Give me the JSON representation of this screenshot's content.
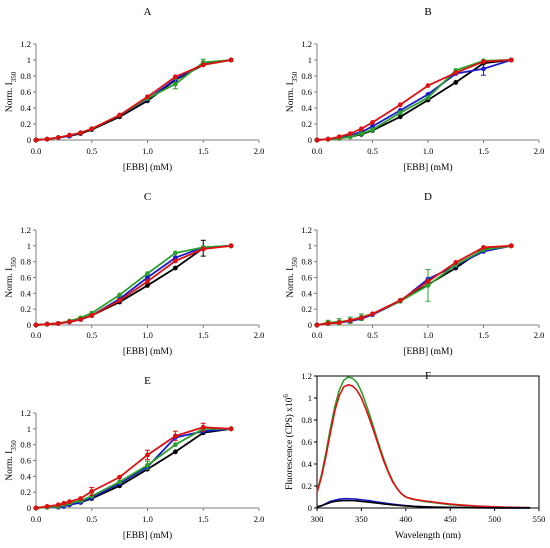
{
  "chart_data": [
    {
      "panel": "A",
      "type": "line",
      "title": "A",
      "ylabel": "Norm. I",
      "ylabel_sub": "350",
      "xlabel": "[EBB]  (mM)",
      "xlim": [
        0,
        2
      ],
      "ylim": [
        0,
        1.2
      ],
      "xticks": [
        "0.0",
        "0.5",
        "1.0",
        "1.5",
        "2.0"
      ],
      "yticks": [
        "0",
        "0.2",
        "0.4",
        "0.6",
        "0.8",
        "1",
        "1.2"
      ],
      "x": [
        0,
        0.1,
        0.2,
        0.3,
        0.4,
        0.5,
        0.75,
        1.0,
        1.25,
        1.5,
        1.75
      ],
      "series": [
        {
          "color": "#000000",
          "values": [
            0,
            0.01,
            0.03,
            0.05,
            0.08,
            0.13,
            0.29,
            0.49,
            0.75,
            0.94,
            1.0
          ]
        },
        {
          "color": "#1a1acc",
          "values": [
            0,
            0.01,
            0.03,
            0.05,
            0.09,
            0.14,
            0.31,
            0.51,
            0.76,
            0.95,
            1.0
          ]
        },
        {
          "color": "#2ca02c",
          "values": [
            0,
            0.01,
            0.03,
            0.06,
            0.09,
            0.14,
            0.31,
            0.52,
            0.7,
            0.97,
            1.0
          ],
          "errors": [
            0,
            0,
            0,
            0,
            0,
            0,
            0,
            0,
            0.06,
            0.04,
            0
          ]
        },
        {
          "color": "#dd1111",
          "values": [
            0,
            0.01,
            0.03,
            0.06,
            0.09,
            0.14,
            0.31,
            0.54,
            0.79,
            0.94,
            1.0
          ]
        }
      ]
    },
    {
      "panel": "B",
      "type": "line",
      "title": "B",
      "ylabel": "Norm. I",
      "ylabel_sub": "350",
      "xlabel": "[EBB]  (mM)",
      "xlim": [
        0,
        2
      ],
      "ylim": [
        0,
        1.2
      ],
      "xticks": [
        "0.0",
        "0.5",
        "1.0",
        "1.5",
        "2.0"
      ],
      "yticks": [
        "0",
        "0.2",
        "0.4",
        "0.6",
        "0.8",
        "1",
        "1.2"
      ],
      "x": [
        0,
        0.1,
        0.2,
        0.3,
        0.4,
        0.5,
        0.75,
        1.0,
        1.25,
        1.5,
        1.75
      ],
      "series": [
        {
          "color": "#000000",
          "values": [
            0,
            0.01,
            0.02,
            0.04,
            0.07,
            0.12,
            0.29,
            0.5,
            0.72,
            0.96,
            1.0
          ]
        },
        {
          "color": "#1a1acc",
          "values": [
            0,
            0.01,
            0.03,
            0.06,
            0.1,
            0.17,
            0.37,
            0.57,
            0.83,
            0.89,
            1.0
          ],
          "errors": [
            0,
            0,
            0,
            0,
            0,
            0,
            0,
            0,
            0,
            0.08,
            0
          ]
        },
        {
          "color": "#2ca02c",
          "values": [
            0,
            0.01,
            0.02,
            0.04,
            0.08,
            0.13,
            0.34,
            0.53,
            0.87,
            0.99,
            1.0
          ]
        },
        {
          "color": "#dd1111",
          "values": [
            0,
            0.01,
            0.04,
            0.08,
            0.14,
            0.22,
            0.44,
            0.68,
            0.84,
            0.98,
            1.0
          ]
        }
      ]
    },
    {
      "panel": "C",
      "type": "line",
      "title": "C",
      "ylabel": "Norm. I",
      "ylabel_sub": "350",
      "xlabel": "[EBB]  (mM)",
      "xlim": [
        0,
        2
      ],
      "ylim": [
        0,
        1.2
      ],
      "xticks": [
        "0.0",
        "0.5",
        "1.0",
        "1.5",
        "2.0"
      ],
      "yticks": [
        "0",
        "0.2",
        "0.4",
        "0.6",
        "0.8",
        "1",
        "1.2"
      ],
      "x": [
        0,
        0.1,
        0.2,
        0.3,
        0.4,
        0.5,
        0.75,
        1.0,
        1.25,
        1.5,
        1.75
      ],
      "series": [
        {
          "color": "#000000",
          "values": [
            0,
            0.01,
            0.02,
            0.04,
            0.07,
            0.12,
            0.29,
            0.5,
            0.72,
            0.97,
            1.0
          ],
          "errors": [
            0,
            0,
            0,
            0,
            0,
            0,
            0,
            0,
            0,
            0.1,
            0
          ]
        },
        {
          "color": "#1a1acc",
          "values": [
            0,
            0.01,
            0.02,
            0.04,
            0.07,
            0.12,
            0.33,
            0.6,
            0.85,
            0.98,
            1.0
          ]
        },
        {
          "color": "#2ca02c",
          "values": [
            0,
            0.01,
            0.02,
            0.05,
            0.09,
            0.15,
            0.38,
            0.65,
            0.91,
            0.98,
            1.0
          ]
        },
        {
          "color": "#dd1111",
          "values": [
            0,
            0.01,
            0.02,
            0.04,
            0.07,
            0.12,
            0.31,
            0.55,
            0.81,
            0.96,
            1.0
          ]
        }
      ]
    },
    {
      "panel": "D",
      "type": "line",
      "title": "D",
      "ylabel": "Norm. I",
      "ylabel_sub": "350",
      "xlabel": "[EBB]  (mM)",
      "xlim": [
        0,
        2
      ],
      "ylim": [
        0,
        1.2
      ],
      "xticks": [
        "0.0",
        "0.5",
        "1.0",
        "1.5",
        "2.0"
      ],
      "yticks": [
        "0",
        "0.2",
        "0.4",
        "0.6",
        "0.8",
        "1",
        "1.2"
      ],
      "x": [
        0,
        0.1,
        0.2,
        0.3,
        0.4,
        0.5,
        0.75,
        1.0,
        1.25,
        1.5,
        1.75
      ],
      "series": [
        {
          "color": "#000000",
          "values": [
            0,
            0.02,
            0.03,
            0.05,
            0.08,
            0.14,
            0.31,
            0.51,
            0.72,
            0.96,
            1.0
          ]
        },
        {
          "color": "#1a1acc",
          "values": [
            0,
            0.02,
            0.03,
            0.05,
            0.08,
            0.13,
            0.3,
            0.58,
            0.75,
            0.93,
            1.0
          ]
        },
        {
          "color": "#2ca02c",
          "values": [
            0,
            0.03,
            0.04,
            0.06,
            0.1,
            0.14,
            0.3,
            0.5,
            0.76,
            0.95,
            1.0
          ],
          "errors": [
            0,
            0.03,
            0.04,
            0.04,
            0.04,
            0,
            0,
            0.2,
            0,
            0,
            0
          ]
        },
        {
          "color": "#dd1111",
          "values": [
            0,
            0.02,
            0.03,
            0.06,
            0.09,
            0.14,
            0.31,
            0.55,
            0.79,
            0.98,
            1.0
          ]
        }
      ]
    },
    {
      "panel": "E",
      "type": "line",
      "title": "E",
      "ylabel": "Norm. I",
      "ylabel_sub": "350",
      "xlabel": "[EBB]  (mM)",
      "xlim": [
        0,
        2
      ],
      "ylim": [
        0,
        1.2
      ],
      "xticks": [
        "0.0",
        "0.5",
        "1.0",
        "1.5",
        "2.0"
      ],
      "yticks": [
        "0",
        "0.2",
        "0.4",
        "0.6",
        "0.8",
        "1",
        "1.2"
      ],
      "x": [
        0,
        0.1,
        0.2,
        0.25,
        0.3,
        0.4,
        0.5,
        0.75,
        1.0,
        1.25,
        1.5,
        1.75
      ],
      "series": [
        {
          "color": "#000000",
          "values": [
            0,
            0.01,
            0.02,
            0.03,
            0.04,
            0.07,
            0.12,
            0.28,
            0.49,
            0.71,
            0.95,
            1.0
          ]
        },
        {
          "color": "#1a1acc",
          "values": [
            0,
            0.01,
            0.01,
            0.02,
            0.04,
            0.07,
            0.13,
            0.31,
            0.52,
            0.89,
            0.97,
            1.0
          ]
        },
        {
          "color": "#2ca02c",
          "values": [
            0,
            0.01,
            0.02,
            0.04,
            0.06,
            0.09,
            0.15,
            0.33,
            0.54,
            0.8,
            1.0,
            1.0
          ],
          "errors": [
            0,
            0,
            0,
            0,
            0,
            0,
            0,
            0,
            0.05,
            0,
            0,
            0
          ]
        },
        {
          "color": "#dd1111",
          "values": [
            0,
            0.02,
            0.04,
            0.06,
            0.08,
            0.12,
            0.21,
            0.39,
            0.67,
            0.91,
            1.02,
            1.0
          ],
          "errors": [
            0,
            0,
            0,
            0,
            0,
            0,
            0.05,
            0,
            0.06,
            0.06,
            0.05,
            0
          ]
        }
      ]
    },
    {
      "panel": "F",
      "type": "line",
      "title": "F",
      "ylabel": "Fluorescence (CPS) x10",
      "ylabel_sup": "6",
      "xlabel": "Wavelength   (nm)",
      "xlim": [
        300,
        550
      ],
      "ylim": [
        0,
        1.2
      ],
      "xticks": [
        "300",
        "350",
        "400",
        "450",
        "500",
        "550"
      ],
      "yticks": [
        "0",
        "0.2",
        "0.4",
        "0.6",
        "0.8",
        "1",
        "1.2"
      ],
      "x": [
        300,
        305,
        310,
        315,
        320,
        325,
        330,
        335,
        340,
        345,
        350,
        355,
        360,
        365,
        370,
        375,
        380,
        385,
        390,
        395,
        400,
        405,
        410,
        420,
        430,
        440,
        450,
        460,
        470,
        480,
        490,
        500,
        510,
        520,
        530,
        540
      ],
      "series": [
        {
          "color": "#2ca02c",
          "values": [
            0.15,
            0.3,
            0.5,
            0.72,
            0.92,
            1.07,
            1.16,
            1.19,
            1.18,
            1.14,
            1.06,
            0.95,
            0.83,
            0.7,
            0.57,
            0.45,
            0.34,
            0.25,
            0.18,
            0.13,
            0.1,
            0.085,
            0.075,
            0.06,
            0.05,
            0.04,
            0.03,
            0.025,
            0.02,
            0.016,
            0.013,
            0.01,
            0.008,
            0.006,
            0.004,
            0.003
          ]
        },
        {
          "color": "#dd1111",
          "values": [
            0.14,
            0.28,
            0.47,
            0.68,
            0.88,
            1.02,
            1.1,
            1.12,
            1.11,
            1.07,
            1.0,
            0.9,
            0.79,
            0.67,
            0.55,
            0.43,
            0.33,
            0.24,
            0.18,
            0.13,
            0.1,
            0.088,
            0.078,
            0.065,
            0.055,
            0.045,
            0.036,
            0.029,
            0.023,
            0.018,
            0.014,
            0.011,
            0.008,
            0.006,
            0.004,
            0.003
          ]
        },
        {
          "color": "#1a1acc",
          "values": [
            0.01,
            0.02,
            0.04,
            0.06,
            0.07,
            0.08,
            0.085,
            0.085,
            0.083,
            0.08,
            0.075,
            0.07,
            0.065,
            0.058,
            0.052,
            0.046,
            0.04,
            0.035,
            0.03,
            0.026,
            0.022,
            0.019,
            0.016,
            0.012,
            0.009,
            0.007,
            0.006,
            0.005,
            0.004,
            0.003,
            0.002,
            0.002,
            0.001,
            0.001,
            0.001,
            0.001
          ]
        },
        {
          "color": "#000000",
          "values": [
            0.01,
            0.02,
            0.035,
            0.05,
            0.06,
            0.065,
            0.068,
            0.068,
            0.067,
            0.065,
            0.06,
            0.056,
            0.052,
            0.047,
            0.042,
            0.037,
            0.033,
            0.029,
            0.025,
            0.022,
            0.019,
            0.016,
            0.014,
            0.01,
            0.008,
            0.006,
            0.005,
            0.004,
            0.003,
            0.002,
            0.002,
            0.001,
            0.001,
            0.001,
            0.001,
            0.001
          ]
        }
      ]
    }
  ]
}
